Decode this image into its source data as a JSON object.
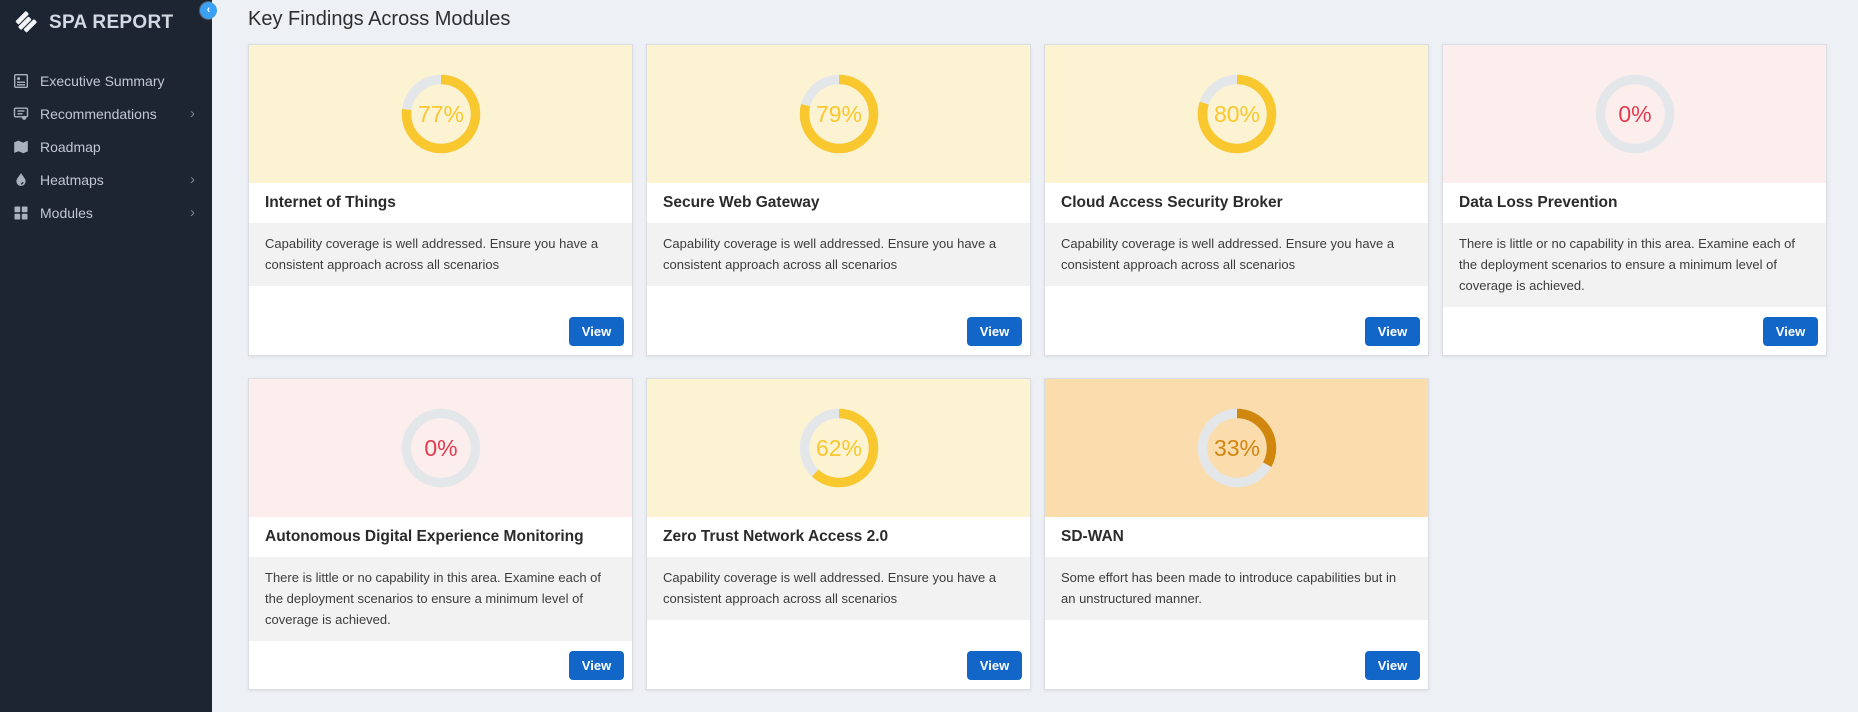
{
  "sidebar": {
    "brand": "SPA REPORT",
    "items": [
      {
        "label": "Executive Summary",
        "icon": "executive-summary-icon",
        "has_submenu": false
      },
      {
        "label": "Recommendations",
        "icon": "recommendations-icon",
        "has_submenu": true
      },
      {
        "label": "Roadmap",
        "icon": "roadmap-icon",
        "has_submenu": false
      },
      {
        "label": "Heatmaps",
        "icon": "heatmaps-icon",
        "has_submenu": true
      },
      {
        "label": "Modules",
        "icon": "modules-icon",
        "has_submenu": true
      }
    ],
    "submenu_chevron": "›",
    "collapse_chevron": "‹"
  },
  "main": {
    "heading": "Key Findings Across Modules",
    "view_button_label": "View",
    "cards": [
      {
        "title": "Internet of Things",
        "percent": 77,
        "description": "Capability coverage is well addressed. Ensure you have a consistent approach across all scenarios",
        "tile_bg": "#FCF3D3",
        "ring_color": "#F9C72E",
        "value_color": "#F9C72E"
      },
      {
        "title": "Secure Web Gateway",
        "percent": 79,
        "description": "Capability coverage is well addressed. Ensure you have a consistent approach across all scenarios",
        "tile_bg": "#FCF3D3",
        "ring_color": "#F9C72E",
        "value_color": "#F9C72E"
      },
      {
        "title": "Cloud Access Security Broker",
        "percent": 80,
        "description": "Capability coverage is well addressed. Ensure you have a consistent approach across all scenarios",
        "tile_bg": "#FCF3D3",
        "ring_color": "#F9C72E",
        "value_color": "#F9C72E"
      },
      {
        "title": "Data Loss Prevention",
        "percent": 0,
        "description": "There is little or no capability in this area. Examine each of the deployment scenarios to ensure a minimum level of coverage is achieved.",
        "tile_bg": "#FCEEED",
        "ring_color": "#E23B4F",
        "value_color": "#E23B4F"
      },
      {
        "title": "Autonomous Digital Experience Monitoring",
        "percent": 0,
        "description": "There is little or no capability in this area. Examine each of the deployment scenarios to ensure a minimum level of coverage is achieved.",
        "tile_bg": "#FCEEED",
        "ring_color": "#E23B4F",
        "value_color": "#E23B4F"
      },
      {
        "title": "Zero Trust Network Access 2.0",
        "percent": 62,
        "description": "Capability coverage is well addressed. Ensure you have a consistent approach across all scenarios",
        "tile_bg": "#FCF3D3",
        "ring_color": "#F9C72E",
        "value_color": "#F9C72E"
      },
      {
        "title": "SD-WAN",
        "percent": 33,
        "description": "Some effort has been made to introduce capabilities but in an unstructured manner.",
        "tile_bg": "#FADCAD",
        "ring_color": "#D1860E",
        "value_color": "#D1860E"
      }
    ]
  },
  "colors": {
    "sidebar_bg": "#1D2533",
    "main_bg": "#EDF0F4",
    "donut_track": "#E4E7EA",
    "view_button_bg": "#1166C8",
    "collapse_button_bg": "#3AA0F4"
  }
}
